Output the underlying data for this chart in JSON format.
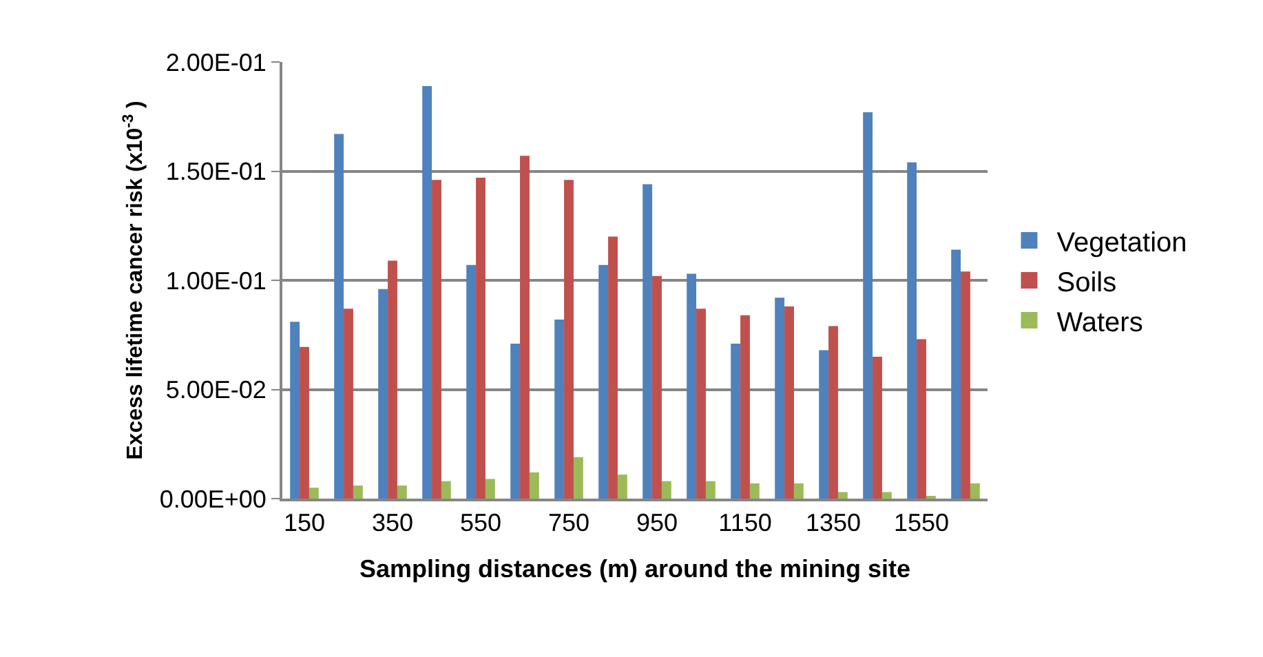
{
  "chart_data": {
    "type": "bar",
    "xlabel": "Sampling distances (m) around the mining site",
    "ylabel": "Excess lifetime cancer risk (x10$^{-3}$ )",
    "categories": [
      "150",
      null,
      "350",
      null,
      "550",
      null,
      "750",
      null,
      "950",
      null,
      "1150",
      null,
      "1350",
      null,
      "1550",
      null
    ],
    "series": [
      {
        "name": "Vegetation",
        "color": "#4f81bd",
        "values": [
          0.081,
          0.167,
          0.096,
          0.189,
          0.107,
          0.071,
          0.082,
          0.107,
          0.144,
          0.103,
          0.071,
          0.092,
          0.068,
          0.177,
          0.154,
          0.114
        ]
      },
      {
        "name": "Soils",
        "color": "#c0504d",
        "values": [
          0.0695,
          0.087,
          0.109,
          0.146,
          0.147,
          0.157,
          0.146,
          0.12,
          0.102,
          0.087,
          0.084,
          0.088,
          0.079,
          0.065,
          0.073,
          0.104
        ]
      },
      {
        "name": "Waters",
        "color": "#9bbb59",
        "values": [
          0.005,
          0.006,
          0.006,
          0.008,
          0.009,
          0.012,
          0.019,
          0.011,
          0.008,
          0.008,
          0.007,
          0.007,
          0.003,
          0.003,
          0.001,
          0.007
        ]
      }
    ],
    "ylim": [
      0,
      0.2
    ],
    "yticks": [
      {
        "value": 0,
        "label": "0.00E+00"
      },
      {
        "value": 0.05,
        "label": "5.00E-02"
      },
      {
        "value": 0.1,
        "label": "1.00E-01"
      },
      {
        "value": 0.15,
        "label": "1.50E-01"
      },
      {
        "value": 0.2,
        "label": "2.00E-01"
      }
    ],
    "grid": "y",
    "legend": "right"
  }
}
